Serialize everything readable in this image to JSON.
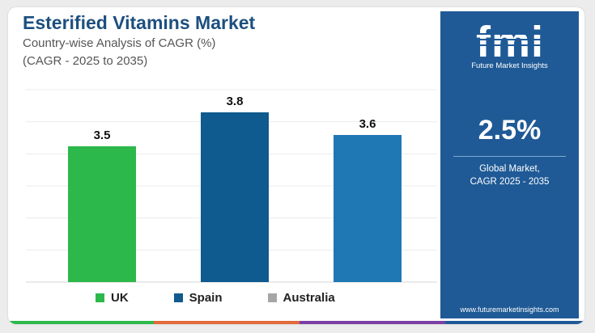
{
  "header": {
    "title": "Esterified Vitamins Market",
    "subtitle": "Country-wise Analysis of CAGR (%)",
    "subtitle2": "(CAGR - 2025 to 2035)"
  },
  "chart_data": {
    "type": "bar",
    "categories": [
      "UK",
      "Spain",
      "Australia"
    ],
    "values": [
      3.5,
      3.8,
      3.6
    ],
    "data_labels": [
      "3.5",
      "3.8",
      "3.6"
    ],
    "colors": [
      "#2db84b",
      "#0f5a8e",
      "#1f78b4"
    ],
    "ylim": [
      2.3,
      4.0
    ],
    "grid": true,
    "legend": {
      "position": "bottom",
      "entries": [
        {
          "label": "UK",
          "color": "#2db84b"
        },
        {
          "label": "Spain",
          "color": "#0f5a8e"
        },
        {
          "label": "Australia",
          "color": "#a6a6a6"
        }
      ]
    }
  },
  "side_panel": {
    "logo_text": "fmi",
    "logo_subtitle": "Future Market Insights",
    "stat_value": "2.5%",
    "stat_label_1": "Global Market,",
    "stat_label_2": "CAGR 2025 - 2035",
    "url": "www.futuremarketinsights.com",
    "background": "#1f5a96"
  },
  "footer_colors": [
    "#2db84b",
    "#e2693a",
    "#7b3fa6",
    "#1f5a96"
  ]
}
